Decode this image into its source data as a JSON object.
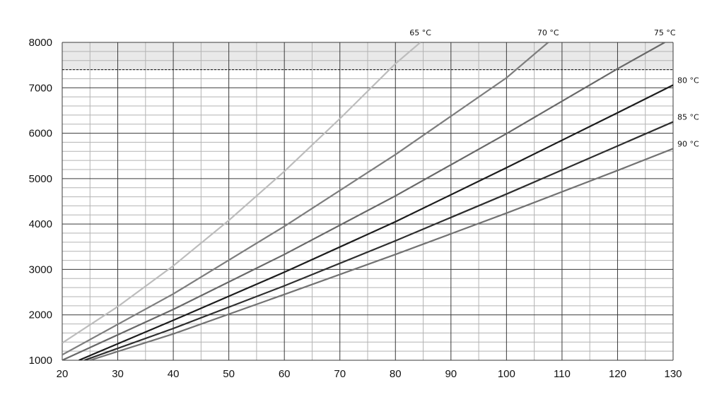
{
  "chart_data": {
    "type": "line",
    "title": "",
    "xlabel": "",
    "ylabel": "",
    "xlim": [
      20,
      130
    ],
    "ylim": [
      1000,
      8000
    ],
    "x_ticks": [
      20,
      30,
      40,
      50,
      60,
      70,
      80,
      90,
      100,
      110,
      120,
      130
    ],
    "y_ticks": [
      1000,
      2000,
      3000,
      4000,
      5000,
      6000,
      7000,
      8000
    ],
    "grid": true,
    "limit_line": {
      "y": 7400,
      "style": "dashed",
      "shaded_band": [
        7400,
        8000
      ]
    },
    "series": [
      {
        "name": "65 °C",
        "color": "#bcbcbc",
        "x": [
          20,
          30,
          40,
          50,
          60,
          70,
          80,
          84.5
        ],
        "y": [
          1380,
          2180,
          3080,
          4080,
          5160,
          6320,
          7530,
          8000
        ]
      },
      {
        "name": "70 °C",
        "color": "#7d7d7d",
        "x": [
          20,
          40,
          60,
          80,
          100,
          107.5
        ],
        "y": [
          1120,
          2460,
          3950,
          5530,
          7220,
          8000
        ]
      },
      {
        "name": "75 °C",
        "color": "#686868",
        "x": [
          20,
          40,
          60,
          80,
          100,
          120,
          128.5
        ],
        "y": [
          1000,
          2120,
          3330,
          4620,
          5990,
          7420,
          8000
        ]
      },
      {
        "name": "80 °C",
        "color": "#1c1c1c",
        "x": [
          23,
          40,
          60,
          80,
          100,
          120,
          130
        ],
        "y": [
          1000,
          1880,
          2940,
          4050,
          5240,
          6450,
          7060
        ]
      },
      {
        "name": "85 °C",
        "color": "#2e2e2e",
        "x": [
          24,
          40,
          60,
          80,
          100,
          120,
          130
        ],
        "y": [
          1000,
          1700,
          2640,
          3630,
          4660,
          5720,
          6250
        ]
      },
      {
        "name": "90 °C",
        "color": "#727272",
        "x": [
          25,
          40,
          60,
          80,
          100,
          120,
          130
        ],
        "y": [
          1000,
          1580,
          2450,
          3330,
          4240,
          5180,
          5660
        ]
      }
    ]
  }
}
